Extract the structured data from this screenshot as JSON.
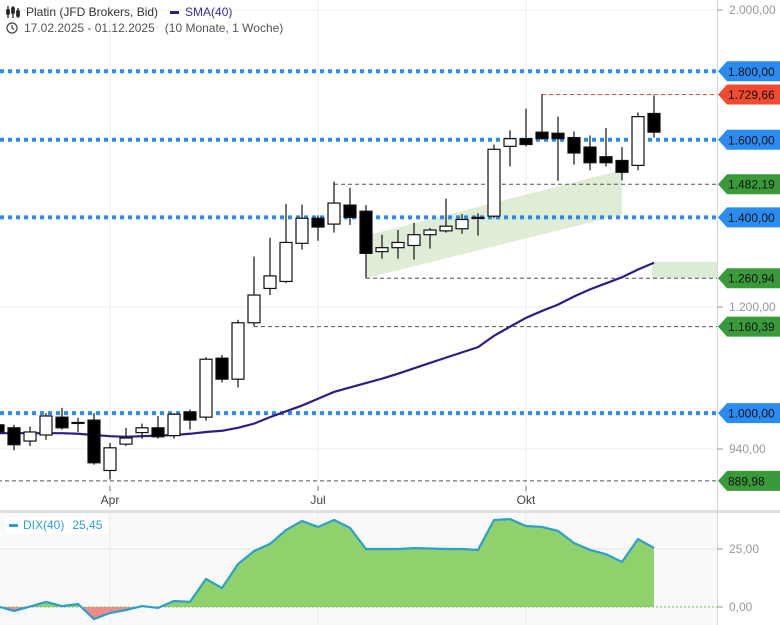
{
  "header": {
    "title": "Platin (JFD Brokers, Bid)",
    "indicator": "SMA(40)",
    "date_range": "17.02.2025 - 01.12.2025",
    "duration": "(10 Monate, 1 Woche)"
  },
  "colors": {
    "sma": "#2b1f86",
    "blue_level": "#2a8cf0",
    "red_level": "#f04a30",
    "green_level": "#3a9a3a",
    "dix_line": "#2a9fd0",
    "dix_pos": "#8fd16a",
    "dix_neg": "#f08a84",
    "channel": "#dcebd3"
  },
  "chart_data": {
    "type": "candlestick",
    "scale": "log",
    "ylim": [
      870,
      2040
    ],
    "y_ticks": [
      {
        "value": 2000,
        "label": "2.000,00"
      },
      {
        "value": 1200,
        "label": "1.200,00"
      },
      {
        "value": 940,
        "label": "940,00"
      }
    ],
    "x_ticks": [
      {
        "index": 7,
        "label": "Apr"
      },
      {
        "index": 20,
        "label": "Jul"
      },
      {
        "index": 33,
        "label": "Okt"
      }
    ],
    "candles": [
      [
        980,
        968,
        985,
        965
      ],
      [
        975,
        947,
        980,
        938
      ],
      [
        953,
        968,
        977,
        945
      ],
      [
        963,
        995,
        1000,
        955
      ],
      [
        993,
        975,
        1009,
        972
      ],
      [
        983,
        984,
        992,
        968
      ],
      [
        988,
        918,
        1000,
        915
      ],
      [
        906,
        942,
        950,
        892
      ],
      [
        948,
        958,
        975,
        945
      ],
      [
        967,
        975,
        982,
        957
      ],
      [
        975,
        960,
        995,
        957
      ],
      [
        962,
        998,
        1000,
        957
      ],
      [
        1002,
        988,
        1006,
        972
      ],
      [
        993,
        1097,
        1101,
        987
      ],
      [
        1099,
        1060,
        1105,
        1054
      ],
      [
        1060,
        1168,
        1174,
        1045
      ],
      [
        1168,
        1225,
        1309,
        1161
      ],
      [
        1239,
        1266,
        1352,
        1225
      ],
      [
        1254,
        1341,
        1433,
        1250
      ],
      [
        1339,
        1398,
        1431,
        1325
      ],
      [
        1398,
        1377,
        1405,
        1345
      ],
      [
        1384,
        1435,
        1489,
        1364
      ],
      [
        1430,
        1400,
        1473,
        1382
      ],
      [
        1415,
        1316,
        1430,
        1261
      ],
      [
        1320,
        1329,
        1359,
        1304
      ],
      [
        1329,
        1341,
        1370,
        1304
      ],
      [
        1334,
        1359,
        1387,
        1302
      ],
      [
        1359,
        1370,
        1375,
        1327
      ],
      [
        1368,
        1379,
        1446,
        1364
      ],
      [
        1373,
        1395,
        1408,
        1361
      ],
      [
        1398,
        1400,
        1410,
        1357
      ],
      [
        1403,
        1574,
        1587,
        1398
      ],
      [
        1582,
        1603,
        1626,
        1528
      ],
      [
        1603,
        1587,
        1688,
        1582
      ],
      [
        1621,
        1603,
        1730,
        1600
      ],
      [
        1618,
        1603,
        1665,
        1491
      ],
      [
        1606,
        1564,
        1623,
        1533
      ],
      [
        1580,
        1538,
        1612,
        1518
      ],
      [
        1554,
        1538,
        1633,
        1528
      ],
      [
        1544,
        1513,
        1580,
        1492
      ],
      [
        1531,
        1665,
        1677,
        1518
      ],
      [
        1674,
        1621,
        1727,
        1606
      ]
    ],
    "sma40": [
      966,
      966,
      966,
      966,
      966,
      965,
      963,
      961,
      960,
      961,
      962,
      963,
      965,
      968,
      970,
      975,
      982,
      993,
      1003,
      1013,
      1025,
      1037,
      1045,
      1053,
      1061,
      1070,
      1080,
      1090,
      1100,
      1110,
      1120,
      1142,
      1160,
      1178,
      1192,
      1205,
      1222,
      1237,
      1250,
      1263,
      1280,
      1295
    ],
    "levels": [
      {
        "value": 1800,
        "label": "1.800,00",
        "kind": "blue",
        "from_index": 0
      },
      {
        "value": 1729.66,
        "label": "1.729,66",
        "kind": "red",
        "from_index": 34
      },
      {
        "value": 1600,
        "label": "1.600,00",
        "kind": "blue",
        "from_index": 0
      },
      {
        "value": 1482.19,
        "label": "1.482,19",
        "kind": "green",
        "from_index": 21
      },
      {
        "value": 1400,
        "label": "1.400,00",
        "kind": "blue",
        "from_index": 0
      },
      {
        "value": 1260.94,
        "label": "1.260,94",
        "kind": "green",
        "from_index": 23
      },
      {
        "value": 1160.39,
        "label": "1.160,39",
        "kind": "green",
        "from_index": 16
      },
      {
        "value": 1000,
        "label": "1.000,00",
        "kind": "blue",
        "from_index": 0
      },
      {
        "value": 889.98,
        "label": "889,98",
        "kind": "green",
        "from_index": 0
      }
    ],
    "channel": {
      "start_index": 23,
      "end_index": 39,
      "start": [
        1357,
        1261
      ],
      "end": [
        1519,
        1407
      ]
    },
    "projection_box": {
      "top": 1297,
      "bottom": 1261
    },
    "dix": {
      "label": "DIX(40)",
      "last": "25,45",
      "ylim": [
        -8,
        42
      ],
      "ticks": [
        {
          "value": 25,
          "label": "25,00"
        },
        {
          "value": 0,
          "label": "0,00"
        }
      ],
      "values": [
        0,
        -1.7,
        0.2,
        2.2,
        0.4,
        1.3,
        -5.2,
        -2.6,
        -1.3,
        0.4,
        -0.4,
        2.6,
        2.2,
        12.1,
        8.2,
        18.5,
        24.1,
        27.2,
        33.2,
        37.1,
        34.5,
        37.5,
        34.1,
        25,
        25,
        25,
        25.4,
        25.2,
        25,
        25,
        24.6,
        37.5,
        37.9,
        34.9,
        34.5,
        32.8,
        27.6,
        24.6,
        22.8,
        19.4,
        29.3,
        25.45
      ]
    }
  }
}
